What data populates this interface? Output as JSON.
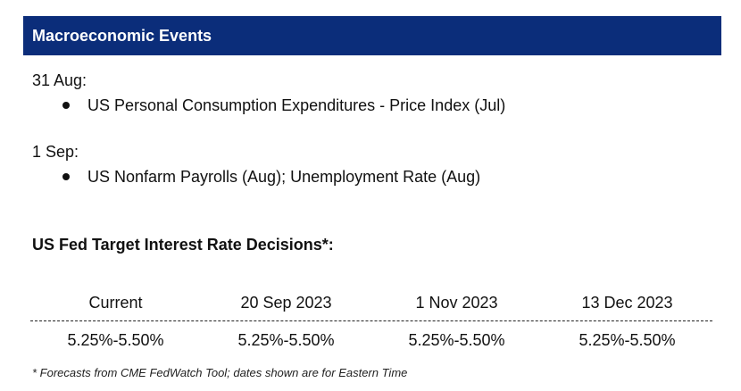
{
  "header": {
    "title": "Macroeconomic Events"
  },
  "events": [
    {
      "date": "31 Aug:",
      "items": [
        "US Personal Consumption Expenditures - Price Index (Jul)"
      ]
    },
    {
      "date": "1 Sep:",
      "items": [
        "US Nonfarm Payrolls (Aug); Unemployment Rate (Aug)"
      ]
    }
  ],
  "fed": {
    "title": "US Fed Target Interest Rate Decisions*:",
    "columns": [
      "Current",
      "20 Sep 2023",
      "1 Nov 2023",
      "13 Dec 2023"
    ],
    "values": [
      "5.25%-5.50%",
      "5.25%-5.50%",
      "5.25%-5.50%",
      "5.25%-5.50%"
    ]
  },
  "footnote": "* Forecasts from CME FedWatch Tool; dates shown are for Eastern Time",
  "colors": {
    "header_bg": "#0b2d7a",
    "header_text": "#ffffff"
  }
}
